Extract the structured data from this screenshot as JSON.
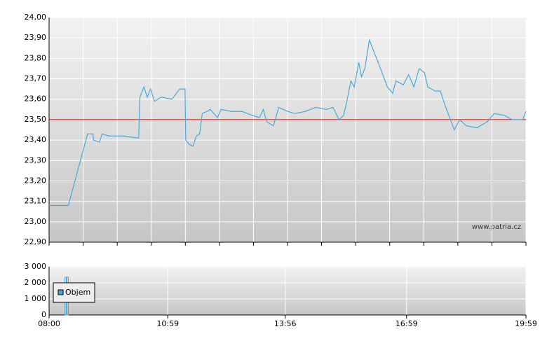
{
  "chart_data": [
    {
      "type": "line",
      "annotation": "www.patria.cz",
      "xlim": [
        "08:00",
        "19:59"
      ],
      "ylim": [
        22.9,
        24.0
      ],
      "yticks": [
        {
          "value": 22.9,
          "label": "22,90"
        },
        {
          "value": 23.0,
          "label": "23,00"
        },
        {
          "value": 23.1,
          "label": "23,10"
        },
        {
          "value": 23.2,
          "label": "23,20"
        },
        {
          "value": 23.3,
          "label": "23,30"
        },
        {
          "value": 23.4,
          "label": "23,40"
        },
        {
          "value": 23.5,
          "label": "23,50"
        },
        {
          "value": 23.6,
          "label": "23,60"
        },
        {
          "value": 23.7,
          "label": "23,70"
        },
        {
          "value": 23.8,
          "label": "23,80"
        },
        {
          "value": 23.9,
          "label": "23,90"
        },
        {
          "value": 24.0,
          "label": "24,00"
        }
      ],
      "reference_line": 23.5,
      "reference_color": "#cc0000",
      "grid": true,
      "x": [
        "08:00",
        "08:29",
        "08:58",
        "09:06",
        "09:07",
        "09:16",
        "09:20",
        "09:30",
        "09:51",
        "10:15",
        "10:17",
        "10:23",
        "10:28",
        "10:33",
        "10:39",
        "10:49",
        "11:05",
        "11:10",
        "11:17",
        "11:25",
        "11:26",
        "11:31",
        "11:37",
        "11:42",
        "11:47",
        "11:51",
        "11:58",
        "12:03",
        "12:14",
        "12:19",
        "12:35",
        "12:51",
        "13:07",
        "13:17",
        "13:23",
        "13:28",
        "13:38",
        "13:42",
        "13:46",
        "14:00",
        "14:10",
        "14:26",
        "14:42",
        "14:58",
        "15:08",
        "15:17",
        "15:24",
        "15:29",
        "15:35",
        "15:40",
        "15:47",
        "15:51",
        "15:56",
        "16:03",
        "16:10",
        "16:15",
        "16:22",
        "16:30",
        "16:38",
        "16:43",
        "16:54",
        "17:02",
        "17:10",
        "17:18",
        "17:26",
        "17:31",
        "17:42",
        "17:50",
        "17:57",
        "18:05",
        "18:11",
        "18:19",
        "18:29",
        "18:45",
        "19:01",
        "19:11",
        "19:27",
        "19:38",
        "19:48",
        "19:54",
        "19:59"
      ],
      "series": [
        {
          "color": "#4aa8d8",
          "values": [
            23.08,
            23.08,
            23.43,
            23.43,
            23.4,
            23.39,
            23.43,
            23.42,
            23.42,
            23.41,
            23.61,
            23.66,
            23.61,
            23.65,
            23.59,
            23.61,
            23.6,
            23.62,
            23.65,
            23.65,
            23.4,
            23.38,
            23.37,
            23.42,
            23.43,
            23.53,
            23.54,
            23.55,
            23.51,
            23.55,
            23.54,
            23.54,
            23.52,
            23.51,
            23.55,
            23.49,
            23.47,
            23.51,
            23.56,
            23.54,
            23.53,
            23.54,
            23.56,
            23.55,
            23.56,
            23.5,
            23.52,
            23.59,
            23.69,
            23.66,
            23.78,
            23.71,
            23.75,
            23.89,
            23.83,
            23.79,
            23.73,
            23.66,
            23.63,
            23.69,
            23.67,
            23.72,
            23.66,
            23.75,
            23.73,
            23.66,
            23.64,
            23.64,
            23.57,
            23.5,
            23.45,
            23.5,
            23.47,
            23.46,
            23.49,
            23.53,
            23.52,
            23.5,
            23.5,
            23.5,
            23.54
          ]
        }
      ]
    },
    {
      "type": "bar",
      "xlim": [
        "08:00",
        "19:59"
      ],
      "xticks": [
        "08:00",
        "10:59",
        "13:56",
        "16:59",
        "19:59"
      ],
      "ylim": [
        0,
        3000
      ],
      "yticks": [
        0,
        {
          "value": 1000,
          "label": "1 000"
        },
        {
          "value": 2000,
          "label": "2 000"
        },
        {
          "value": 3000,
          "label": "3 000"
        }
      ],
      "grid": true,
      "legend": "left",
      "x": [
        "08:25",
        "08:28"
      ],
      "series": [
        {
          "name": "Objem",
          "color": "#4aa8d8",
          "values": [
            2350,
            2350
          ]
        }
      ]
    }
  ]
}
